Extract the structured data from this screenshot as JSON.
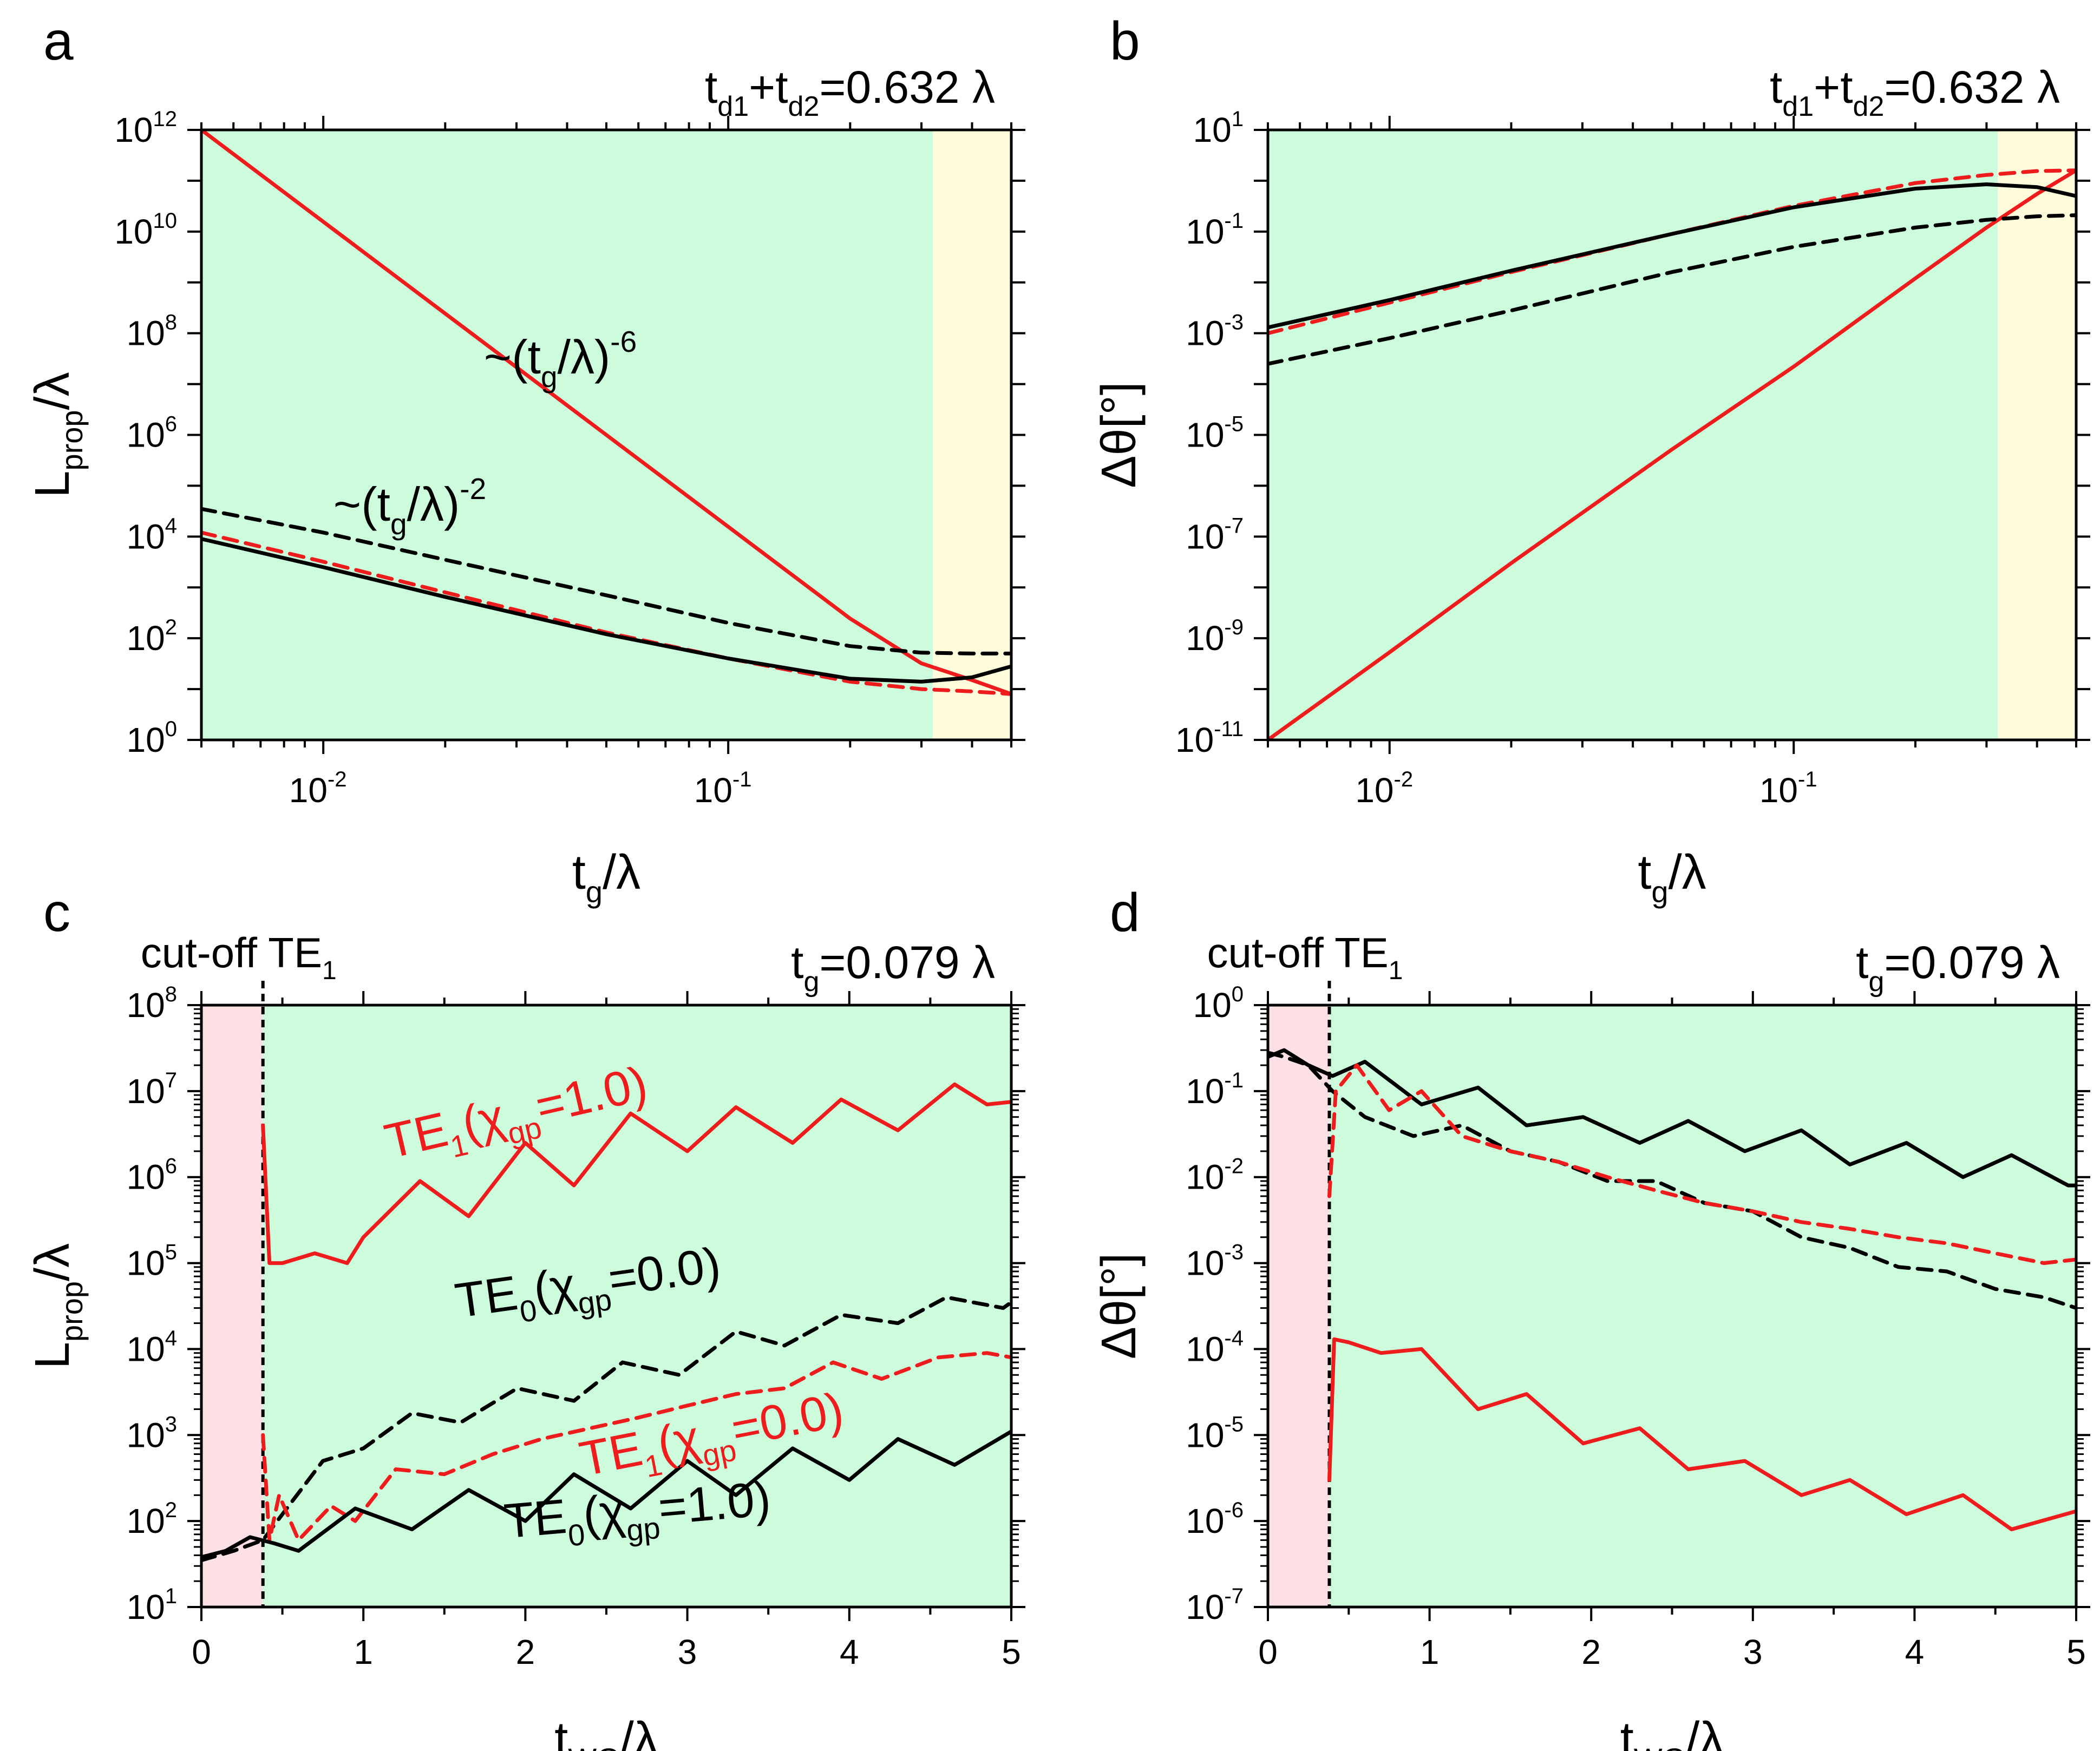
{
  "colors": {
    "green_region": "#ccfcdc",
    "yellow_region": "#fffcdc",
    "pink_region": "#fde0e4",
    "red": "#ee1c1c",
    "black": "#000000",
    "blue": "#2020dd"
  },
  "chart_data": [
    {
      "panel": "a",
      "type": "line",
      "xscale": "log",
      "yscale": "log",
      "xlim": [
        0.005,
        0.5
      ],
      "ylim": [
        1,
        1000000000000.0
      ],
      "xlabel": "t_g/λ",
      "ylabel": "L_prop/λ",
      "annotation": "t_d1+t_d2=0.632 λ",
      "x_ticks": [
        "10^-2",
        "10^-1"
      ],
      "y_ticks": [
        "10^0",
        "10^2",
        "10^4",
        "10^6",
        "10^8",
        "10^10",
        "10^12"
      ],
      "regions": [
        {
          "from": 0.005,
          "to": 0.32,
          "color": "green"
        },
        {
          "from": 0.32,
          "to": 0.5,
          "color": "yellow"
        }
      ],
      "labels": [
        {
          "text": "~(t_g/λ)^-6"
        },
        {
          "text": "~(t_g/λ)^-2"
        }
      ],
      "series": [
        {
          "name": "red solid",
          "color": "red",
          "dash": "solid",
          "x": [
            0.005,
            0.01,
            0.02,
            0.05,
            0.1,
            0.2,
            0.3,
            0.4,
            0.5
          ],
          "y": [
            1000000000000.0,
            15600000000.0,
            244000000.0,
            1000000.0,
            15600.0,
            244,
            32,
            15,
            8
          ]
        },
        {
          "name": "black dashed",
          "color": "black",
          "dash": "dashed",
          "x": [
            0.005,
            0.01,
            0.02,
            0.05,
            0.1,
            0.2,
            0.3,
            0.4,
            0.5
          ],
          "y": [
            35000.0,
            12000.0,
            3500,
            700,
            200,
            70,
            52,
            50,
            50
          ]
        },
        {
          "name": "red dashed",
          "color": "red",
          "dash": "dashed",
          "x": [
            0.005,
            0.01,
            0.02,
            0.05,
            0.1,
            0.2,
            0.3,
            0.4,
            0.5
          ],
          "y": [
            12000.0,
            3200,
            800,
            130,
            40,
            14,
            10,
            9,
            8
          ]
        },
        {
          "name": "black solid",
          "color": "black",
          "dash": "solid",
          "x": [
            0.005,
            0.01,
            0.02,
            0.05,
            0.1,
            0.2,
            0.3,
            0.4,
            0.5
          ],
          "y": [
            9000,
            2500,
            650,
            120,
            40,
            16,
            14,
            17,
            28
          ]
        }
      ]
    },
    {
      "panel": "b",
      "type": "line",
      "xscale": "log",
      "yscale": "log",
      "xlim": [
        0.005,
        0.5
      ],
      "ylim": [
        1e-11,
        10
      ],
      "xlabel": "t_g/λ",
      "ylabel": "Δθ[°]",
      "annotation": "t_d1+t_d2=0.632 λ",
      "x_ticks": [
        "10^-2",
        "10^-1"
      ],
      "y_ticks": [
        "10^-11",
        "10^-9",
        "10^-7",
        "10^-5",
        "10^-3",
        "10^-1",
        "10^1"
      ],
      "regions": [
        {
          "from": 0.005,
          "to": 0.32,
          "color": "green"
        },
        {
          "from": 0.32,
          "to": 0.5,
          "color": "yellow"
        }
      ],
      "series": [
        {
          "name": "red solid",
          "color": "red",
          "dash": "solid",
          "x": [
            0.005,
            0.01,
            0.02,
            0.05,
            0.1,
            0.2,
            0.3,
            0.4,
            0.5
          ],
          "y": [
            1e-11,
            5.3e-10,
            3e-08,
            5.2e-06,
            0.00022,
            0.012,
            0.12,
            0.55,
            1.6
          ]
        },
        {
          "name": "red dashed",
          "color": "red",
          "dash": "dashed",
          "x": [
            0.005,
            0.01,
            0.02,
            0.05,
            0.1,
            0.2,
            0.3,
            0.4,
            0.5
          ],
          "y": [
            0.001,
            0.004,
            0.016,
            0.09,
            0.32,
            0.9,
            1.3,
            1.55,
            1.6
          ]
        },
        {
          "name": "black solid",
          "color": "black",
          "dash": "solid",
          "x": [
            0.005,
            0.01,
            0.02,
            0.05,
            0.1,
            0.2,
            0.3,
            0.4,
            0.5
          ],
          "y": [
            0.0013,
            0.0045,
            0.017,
            0.09,
            0.3,
            0.7,
            0.85,
            0.75,
            0.5
          ]
        },
        {
          "name": "black dashed",
          "color": "black",
          "dash": "dashed",
          "x": [
            0.005,
            0.01,
            0.02,
            0.05,
            0.1,
            0.2,
            0.3,
            0.4,
            0.5
          ],
          "y": [
            0.00025,
            0.0008,
            0.0028,
            0.016,
            0.05,
            0.12,
            0.17,
            0.2,
            0.21
          ]
        }
      ]
    },
    {
      "panel": "c",
      "type": "line",
      "xscale": "linear",
      "yscale": "log",
      "xlim": [
        0,
        5
      ],
      "ylim": [
        10,
        100000000.0
      ],
      "xlabel": "t_WG/λ",
      "ylabel": "L_prop/λ",
      "annotation": "t_g=0.079 λ",
      "cutoff_label": "cut-off TE_1",
      "cutoff_x": 0.38,
      "x_ticks": [
        "0",
        "1",
        "2",
        "3",
        "4",
        "5"
      ],
      "y_ticks": [
        "10^1",
        "10^2",
        "10^3",
        "10^4",
        "10^5",
        "10^6",
        "10^7",
        "10^8"
      ],
      "regions": [
        {
          "from": 0,
          "to": 0.38,
          "color": "pink"
        },
        {
          "from": 0.38,
          "to": 5,
          "color": "green"
        }
      ],
      "labels": [
        {
          "text": "TE_1(χ_gp=1.0)",
          "color": "red"
        },
        {
          "text": "TE_0(χ_gp=0.0)",
          "color": "black"
        },
        {
          "text": "TE_1(χ_gp=0.0)",
          "color": "red"
        },
        {
          "text": "TE_0(χ_gp=1.0)",
          "color": "black"
        }
      ],
      "series": [
        {
          "name": "TE_1(χ_gp=1.0)",
          "color": "red",
          "dash": "solid",
          "x": [
            0.38,
            0.42,
            0.5,
            0.7,
            0.9,
            1.0,
            1.35,
            1.65,
            2.0,
            2.3,
            2.65,
            3.0,
            3.3,
            3.65,
            3.95,
            4.3,
            4.65,
            4.85,
            5.0
          ],
          "y": [
            4000000.0,
            100000.0,
            100000.0,
            130000.0,
            100000.0,
            200000.0,
            900000.0,
            350000.0,
            2500000.0,
            800000.0,
            5500000.0,
            2000000.0,
            6500000.0,
            2500000.0,
            8000000.0,
            3500000.0,
            12000000.0,
            7000000.0,
            7500000.0
          ]
        },
        {
          "name": "TE_0(χ_gp=0.0)",
          "color": "black",
          "dash": "dashed",
          "x": [
            0.0,
            0.2,
            0.38,
            0.5,
            0.75,
            1.0,
            1.3,
            1.6,
            1.95,
            2.3,
            2.6,
            2.95,
            3.3,
            3.6,
            3.95,
            4.3,
            4.6,
            4.95,
            5.0
          ],
          "y": [
            35,
            45,
            60,
            120,
            500,
            700,
            1800,
            1400,
            3500,
            2500,
            7000,
            5000,
            16000.0,
            11000.0,
            25000.0,
            20000.0,
            40000.0,
            30000.0,
            35000.0
          ]
        },
        {
          "name": "TE_1(χ_gp=0.0)",
          "color": "red",
          "dash": "dashed",
          "x": [
            0.38,
            0.42,
            0.48,
            0.6,
            0.8,
            0.95,
            1.2,
            1.5,
            1.8,
            2.1,
            2.4,
            2.7,
            3.0,
            3.3,
            3.6,
            3.9,
            4.2,
            4.55,
            4.85,
            5.0
          ],
          "y": [
            1000,
            60,
            200,
            60,
            150,
            100,
            400,
            350,
            600,
            900,
            1200,
            1600,
            2200,
            3000,
            3500,
            7000,
            4500,
            8000,
            9000,
            8000
          ]
        },
        {
          "name": "TE_0(χ_gp=1.0)",
          "color": "black",
          "dash": "solid",
          "x": [
            0.0,
            0.15,
            0.3,
            0.45,
            0.6,
            0.95,
            1.3,
            1.65,
            2.0,
            2.3,
            2.65,
            3.0,
            3.3,
            3.65,
            4.0,
            4.3,
            4.65,
            5.0
          ],
          "y": [
            38,
            45,
            65,
            55,
            45,
            140,
            80,
            230,
            100,
            350,
            140,
            500,
            200,
            700,
            300,
            900,
            450,
            1100
          ]
        }
      ]
    },
    {
      "panel": "d",
      "type": "line",
      "xscale": "linear",
      "yscale": "log",
      "xlim": [
        0,
        5
      ],
      "ylim": [
        1e-07,
        1
      ],
      "xlabel": "t_WG/λ",
      "ylabel": "Δθ[°]",
      "annotation": "t_g=0.079 λ",
      "cutoff_label": "cut-off TE_1",
      "cutoff_x": 0.38,
      "x_ticks": [
        "0",
        "1",
        "2",
        "3",
        "4",
        "5"
      ],
      "y_ticks": [
        "10^-7",
        "10^-6",
        "10^-5",
        "10^-4",
        "10^-3",
        "10^-2",
        "10^-1",
        "10^0"
      ],
      "regions": [
        {
          "from": 0,
          "to": 0.38,
          "color": "pink"
        },
        {
          "from": 0.38,
          "to": 5,
          "color": "green"
        }
      ],
      "series": [
        {
          "name": "black solid",
          "color": "black",
          "dash": "solid",
          "x": [
            0.0,
            0.1,
            0.25,
            0.4,
            0.6,
            0.95,
            1.3,
            1.6,
            1.95,
            2.3,
            2.6,
            2.95,
            3.3,
            3.6,
            3.95,
            4.3,
            4.6,
            4.95,
            5.0
          ],
          "y": [
            0.25,
            0.3,
            0.2,
            0.15,
            0.22,
            0.07,
            0.11,
            0.04,
            0.05,
            0.025,
            0.045,
            0.02,
            0.035,
            0.014,
            0.025,
            0.01,
            0.018,
            0.008,
            0.008
          ]
        },
        {
          "name": "black dashed",
          "color": "black",
          "dash": "dashed",
          "x": [
            0.0,
            0.1,
            0.25,
            0.4,
            0.6,
            0.9,
            1.2,
            1.5,
            1.8,
            2.1,
            2.4,
            2.7,
            3.0,
            3.3,
            3.6,
            3.9,
            4.2,
            4.5,
            4.8,
            5.0
          ],
          "y": [
            0.28,
            0.25,
            0.2,
            0.1,
            0.05,
            0.03,
            0.04,
            0.02,
            0.015,
            0.009,
            0.009,
            0.005,
            0.004,
            0.002,
            0.0015,
            0.0009,
            0.0008,
            0.0005,
            0.0004,
            0.0003
          ]
        },
        {
          "name": "red dashed",
          "color": "red",
          "dash": "dashed",
          "x": [
            0.38,
            0.42,
            0.55,
            0.75,
            0.95,
            1.2,
            1.5,
            1.8,
            2.1,
            2.4,
            2.7,
            3.0,
            3.3,
            3.6,
            3.9,
            4.2,
            4.5,
            4.8,
            5.0
          ],
          "y": [
            0.006,
            0.1,
            0.2,
            0.06,
            0.1,
            0.03,
            0.02,
            0.015,
            0.01,
            0.007,
            0.005,
            0.004,
            0.003,
            0.0025,
            0.002,
            0.0017,
            0.0013,
            0.001,
            0.0011
          ]
        },
        {
          "name": "red solid",
          "color": "red",
          "dash": "solid",
          "x": [
            0.38,
            0.41,
            0.5,
            0.7,
            0.95,
            1.3,
            1.6,
            1.95,
            2.3,
            2.6,
            2.95,
            3.3,
            3.6,
            3.95,
            4.3,
            4.6,
            5.0
          ],
          "y": [
            3e-06,
            0.00013,
            0.00012,
            9e-05,
            0.0001,
            2e-05,
            3e-05,
            8e-06,
            1.2e-05,
            4e-06,
            5e-06,
            2e-06,
            3e-06,
            1.2e-06,
            2e-06,
            8e-07,
            1.3e-06
          ]
        }
      ]
    }
  ]
}
